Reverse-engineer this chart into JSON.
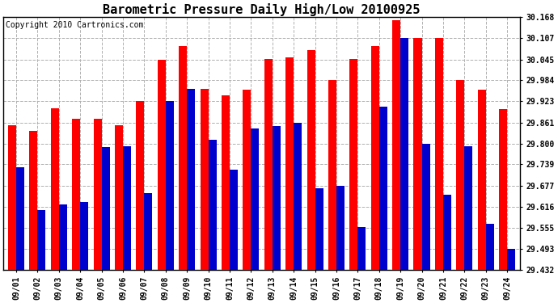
{
  "title": "Barometric Pressure Daily High/Low 20100925",
  "copyright": "Copyright 2010 Cartronics.com",
  "dates": [
    "09/01",
    "09/02",
    "09/03",
    "09/04",
    "09/05",
    "09/06",
    "09/07",
    "09/08",
    "09/09",
    "09/10",
    "09/11",
    "09/12",
    "09/13",
    "09/14",
    "09/15",
    "09/16",
    "09/17",
    "09/18",
    "09/19",
    "09/20",
    "09/21",
    "09/22",
    "09/23",
    "09/24"
  ],
  "highs": [
    29.853,
    29.836,
    29.903,
    29.873,
    29.873,
    29.853,
    29.923,
    30.045,
    30.083,
    29.96,
    29.94,
    29.957,
    30.047,
    30.05,
    30.073,
    29.984,
    30.047,
    30.083,
    30.16,
    30.107,
    30.107,
    29.984,
    29.957,
    29.9
  ],
  "lows": [
    29.73,
    29.607,
    29.623,
    29.63,
    29.79,
    29.793,
    29.655,
    29.923,
    29.96,
    29.81,
    29.723,
    29.843,
    29.85,
    29.86,
    29.67,
    29.677,
    29.557,
    29.907,
    30.107,
    29.8,
    29.65,
    29.793,
    29.567,
    29.493
  ],
  "high_color": "#ff0000",
  "low_color": "#0000cc",
  "background_color": "#ffffff",
  "grid_color": "#b0b0b0",
  "yticks": [
    29.432,
    29.493,
    29.555,
    29.616,
    29.677,
    29.739,
    29.8,
    29.861,
    29.923,
    29.984,
    30.045,
    30.107,
    30.168
  ],
  "ymin": 29.432,
  "ymax": 30.168,
  "bar_width": 0.38,
  "title_fontsize": 11,
  "tick_fontsize": 7,
  "copyright_fontsize": 7
}
